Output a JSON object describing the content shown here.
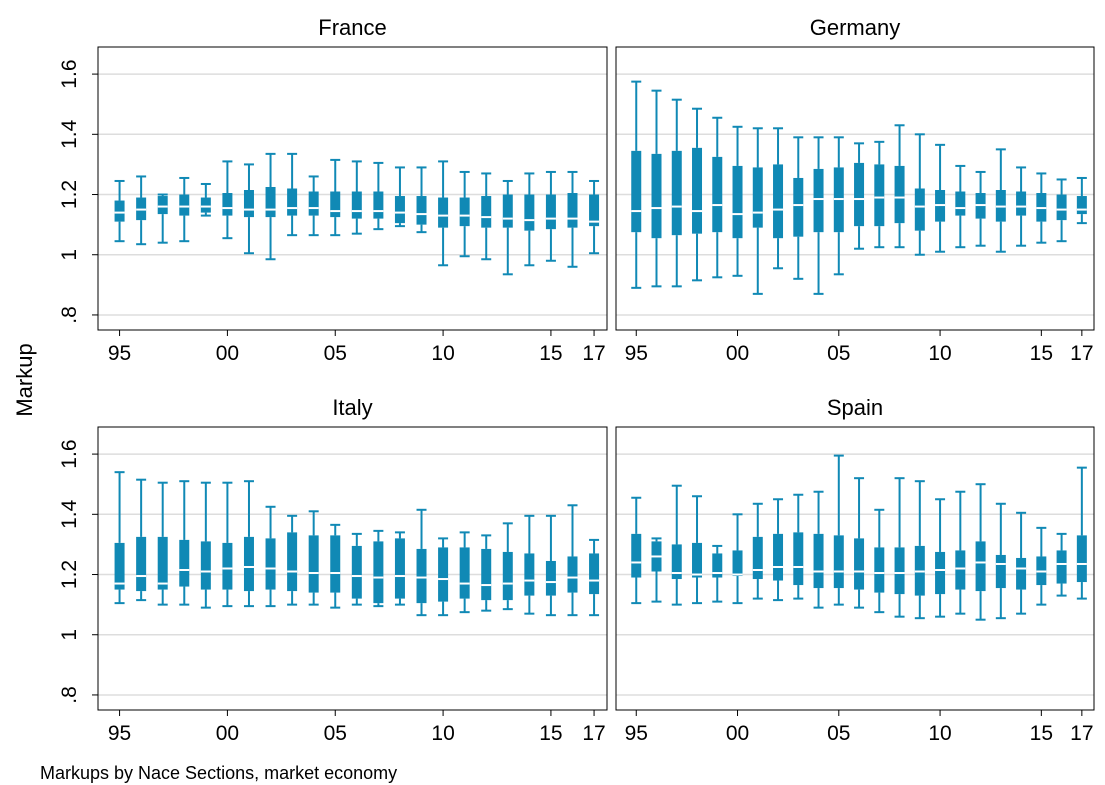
{
  "chart_data": {
    "type": "box",
    "ylabel": "Markup",
    "note": "Markups by Nace Sections, market economy",
    "ylim": [
      0.75,
      1.69
    ],
    "yticks": [
      {
        "value": 0.8,
        "label": ".8"
      },
      {
        "value": 1.0,
        "label": "1"
      },
      {
        "value": 1.2,
        "label": "1.2"
      },
      {
        "value": 1.4,
        "label": "1.4"
      },
      {
        "value": 1.6,
        "label": "1.6"
      }
    ],
    "xlim": [
      1994,
      2017.6
    ],
    "xticks": [
      {
        "value": 1995,
        "label": "95"
      },
      {
        "value": 2000,
        "label": "00"
      },
      {
        "value": 2005,
        "label": "05"
      },
      {
        "value": 2010,
        "label": "10"
      },
      {
        "value": 2015,
        "label": "15"
      },
      {
        "value": 2017,
        "label": "17"
      }
    ],
    "box_color": "#1089b5",
    "median_color": "#ffffff",
    "grid_color": "#dddddd",
    "panels": [
      {
        "name": "France",
        "boxes": [
          {
            "year": 1995,
            "lw": 1.045,
            "q1": 1.11,
            "med": 1.14,
            "q3": 1.18,
            "uw": 1.245
          },
          {
            "year": 1996,
            "lw": 1.035,
            "q1": 1.115,
            "med": 1.15,
            "q3": 1.19,
            "uw": 1.26
          },
          {
            "year": 1997,
            "lw": 1.04,
            "q1": 1.135,
            "med": 1.16,
            "q3": 1.195,
            "uw": 1.2
          },
          {
            "year": 1998,
            "lw": 1.045,
            "q1": 1.13,
            "med": 1.16,
            "q3": 1.2,
            "uw": 1.255
          },
          {
            "year": 1999,
            "lw": 1.13,
            "q1": 1.14,
            "med": 1.16,
            "q3": 1.19,
            "uw": 1.235
          },
          {
            "year": 2000,
            "lw": 1.055,
            "q1": 1.13,
            "med": 1.155,
            "q3": 1.205,
            "uw": 1.31
          },
          {
            "year": 2001,
            "lw": 1.005,
            "q1": 1.125,
            "med": 1.15,
            "q3": 1.215,
            "uw": 1.3
          },
          {
            "year": 2002,
            "lw": 0.985,
            "q1": 1.125,
            "med": 1.15,
            "q3": 1.225,
            "uw": 1.335
          },
          {
            "year": 2003,
            "lw": 1.065,
            "q1": 1.13,
            "med": 1.155,
            "q3": 1.22,
            "uw": 1.335
          },
          {
            "year": 2004,
            "lw": 1.065,
            "q1": 1.13,
            "med": 1.155,
            "q3": 1.21,
            "uw": 1.26
          },
          {
            "year": 2005,
            "lw": 1.065,
            "q1": 1.125,
            "med": 1.145,
            "q3": 1.21,
            "uw": 1.315
          },
          {
            "year": 2006,
            "lw": 1.07,
            "q1": 1.12,
            "med": 1.145,
            "q3": 1.21,
            "uw": 1.31
          },
          {
            "year": 2007,
            "lw": 1.085,
            "q1": 1.12,
            "med": 1.145,
            "q3": 1.21,
            "uw": 1.305
          },
          {
            "year": 2008,
            "lw": 1.095,
            "q1": 1.105,
            "med": 1.14,
            "q3": 1.195,
            "uw": 1.29
          },
          {
            "year": 2009,
            "lw": 1.075,
            "q1": 1.1,
            "med": 1.135,
            "q3": 1.195,
            "uw": 1.29
          },
          {
            "year": 2010,
            "lw": 0.965,
            "q1": 1.09,
            "med": 1.13,
            "q3": 1.19,
            "uw": 1.31
          },
          {
            "year": 2011,
            "lw": 0.995,
            "q1": 1.095,
            "med": 1.13,
            "q3": 1.19,
            "uw": 1.275
          },
          {
            "year": 2012,
            "lw": 0.985,
            "q1": 1.09,
            "med": 1.125,
            "q3": 1.195,
            "uw": 1.27
          },
          {
            "year": 2013,
            "lw": 0.935,
            "q1": 1.09,
            "med": 1.12,
            "q3": 1.2,
            "uw": 1.245
          },
          {
            "year": 2014,
            "lw": 0.965,
            "q1": 1.08,
            "med": 1.115,
            "q3": 1.2,
            "uw": 1.27
          },
          {
            "year": 2015,
            "lw": 0.98,
            "q1": 1.085,
            "med": 1.12,
            "q3": 1.2,
            "uw": 1.275
          },
          {
            "year": 2016,
            "lw": 0.96,
            "q1": 1.09,
            "med": 1.12,
            "q3": 1.205,
            "uw": 1.275
          },
          {
            "year": 2017,
            "lw": 1.005,
            "q1": 1.095,
            "med": 1.11,
            "q3": 1.2,
            "uw": 1.245
          }
        ]
      },
      {
        "name": "Germany",
        "boxes": [
          {
            "year": 1995,
            "lw": 0.89,
            "q1": 1.075,
            "med": 1.145,
            "q3": 1.345,
            "uw": 1.575
          },
          {
            "year": 1996,
            "lw": 0.895,
            "q1": 1.055,
            "med": 1.155,
            "q3": 1.335,
            "uw": 1.545
          },
          {
            "year": 1997,
            "lw": 0.895,
            "q1": 1.065,
            "med": 1.16,
            "q3": 1.345,
            "uw": 1.515
          },
          {
            "year": 1998,
            "lw": 0.915,
            "q1": 1.07,
            "med": 1.145,
            "q3": 1.355,
            "uw": 1.485
          },
          {
            "year": 1999,
            "lw": 0.925,
            "q1": 1.075,
            "med": 1.165,
            "q3": 1.325,
            "uw": 1.455
          },
          {
            "year": 2000,
            "lw": 0.93,
            "q1": 1.055,
            "med": 1.135,
            "q3": 1.295,
            "uw": 1.425
          },
          {
            "year": 2001,
            "lw": 0.87,
            "q1": 1.09,
            "med": 1.14,
            "q3": 1.29,
            "uw": 1.42
          },
          {
            "year": 2002,
            "lw": 0.955,
            "q1": 1.055,
            "med": 1.15,
            "q3": 1.3,
            "uw": 1.42
          },
          {
            "year": 2003,
            "lw": 0.92,
            "q1": 1.06,
            "med": 1.165,
            "q3": 1.255,
            "uw": 1.39
          },
          {
            "year": 2004,
            "lw": 0.87,
            "q1": 1.075,
            "med": 1.185,
            "q3": 1.285,
            "uw": 1.39
          },
          {
            "year": 2005,
            "lw": 0.935,
            "q1": 1.075,
            "med": 1.185,
            "q3": 1.29,
            "uw": 1.39
          },
          {
            "year": 2006,
            "lw": 1.02,
            "q1": 1.095,
            "med": 1.185,
            "q3": 1.305,
            "uw": 1.37
          },
          {
            "year": 2007,
            "lw": 1.025,
            "q1": 1.095,
            "med": 1.19,
            "q3": 1.3,
            "uw": 1.375
          },
          {
            "year": 2008,
            "lw": 1.025,
            "q1": 1.105,
            "med": 1.19,
            "q3": 1.295,
            "uw": 1.43
          },
          {
            "year": 2009,
            "lw": 1.0,
            "q1": 1.08,
            "med": 1.16,
            "q3": 1.22,
            "uw": 1.4
          },
          {
            "year": 2010,
            "lw": 1.01,
            "q1": 1.11,
            "med": 1.165,
            "q3": 1.215,
            "uw": 1.365
          },
          {
            "year": 2011,
            "lw": 1.025,
            "q1": 1.13,
            "med": 1.155,
            "q3": 1.21,
            "uw": 1.295
          },
          {
            "year": 2012,
            "lw": 1.03,
            "q1": 1.12,
            "med": 1.165,
            "q3": 1.205,
            "uw": 1.275
          },
          {
            "year": 2013,
            "lw": 1.01,
            "q1": 1.11,
            "med": 1.16,
            "q3": 1.215,
            "uw": 1.35
          },
          {
            "year": 2014,
            "lw": 1.03,
            "q1": 1.13,
            "med": 1.16,
            "q3": 1.21,
            "uw": 1.29
          },
          {
            "year": 2015,
            "lw": 1.04,
            "q1": 1.11,
            "med": 1.155,
            "q3": 1.205,
            "uw": 1.27
          },
          {
            "year": 2016,
            "lw": 1.045,
            "q1": 1.115,
            "med": 1.15,
            "q3": 1.2,
            "uw": 1.25
          },
          {
            "year": 2017,
            "lw": 1.105,
            "q1": 1.135,
            "med": 1.15,
            "q3": 1.195,
            "uw": 1.255
          }
        ]
      },
      {
        "name": "Italy",
        "boxes": [
          {
            "year": 1995,
            "lw": 1.105,
            "q1": 1.15,
            "med": 1.17,
            "q3": 1.305,
            "uw": 1.54
          },
          {
            "year": 1996,
            "lw": 1.115,
            "q1": 1.145,
            "med": 1.195,
            "q3": 1.325,
            "uw": 1.515
          },
          {
            "year": 1997,
            "lw": 1.1,
            "q1": 1.15,
            "med": 1.17,
            "q3": 1.325,
            "uw": 1.505
          },
          {
            "year": 1998,
            "lw": 1.1,
            "q1": 1.16,
            "med": 1.215,
            "q3": 1.315,
            "uw": 1.51
          },
          {
            "year": 1999,
            "lw": 1.09,
            "q1": 1.15,
            "med": 1.21,
            "q3": 1.31,
            "uw": 1.505
          },
          {
            "year": 2000,
            "lw": 1.095,
            "q1": 1.15,
            "med": 1.22,
            "q3": 1.305,
            "uw": 1.505
          },
          {
            "year": 2001,
            "lw": 1.095,
            "q1": 1.145,
            "med": 1.225,
            "q3": 1.325,
            "uw": 1.51
          },
          {
            "year": 2002,
            "lw": 1.095,
            "q1": 1.15,
            "med": 1.22,
            "q3": 1.32,
            "uw": 1.425
          },
          {
            "year": 2003,
            "lw": 1.1,
            "q1": 1.145,
            "med": 1.21,
            "q3": 1.34,
            "uw": 1.395
          },
          {
            "year": 2004,
            "lw": 1.1,
            "q1": 1.14,
            "med": 1.205,
            "q3": 1.33,
            "uw": 1.41
          },
          {
            "year": 2005,
            "lw": 1.09,
            "q1": 1.14,
            "med": 1.205,
            "q3": 1.33,
            "uw": 1.365
          },
          {
            "year": 2006,
            "lw": 1.1,
            "q1": 1.12,
            "med": 1.195,
            "q3": 1.295,
            "uw": 1.335
          },
          {
            "year": 2007,
            "lw": 1.095,
            "q1": 1.105,
            "med": 1.19,
            "q3": 1.31,
            "uw": 1.345
          },
          {
            "year": 2008,
            "lw": 1.1,
            "q1": 1.12,
            "med": 1.195,
            "q3": 1.32,
            "uw": 1.34
          },
          {
            "year": 2009,
            "lw": 1.065,
            "q1": 1.105,
            "med": 1.19,
            "q3": 1.285,
            "uw": 1.415
          },
          {
            "year": 2010,
            "lw": 1.065,
            "q1": 1.11,
            "med": 1.185,
            "q3": 1.29,
            "uw": 1.32
          },
          {
            "year": 2011,
            "lw": 1.075,
            "q1": 1.12,
            "med": 1.17,
            "q3": 1.29,
            "uw": 1.34
          },
          {
            "year": 2012,
            "lw": 1.08,
            "q1": 1.115,
            "med": 1.165,
            "q3": 1.285,
            "uw": 1.33
          },
          {
            "year": 2013,
            "lw": 1.085,
            "q1": 1.115,
            "med": 1.17,
            "q3": 1.275,
            "uw": 1.37
          },
          {
            "year": 2014,
            "lw": 1.07,
            "q1": 1.13,
            "med": 1.18,
            "q3": 1.27,
            "uw": 1.395
          },
          {
            "year": 2015,
            "lw": 1.065,
            "q1": 1.13,
            "med": 1.175,
            "q3": 1.245,
            "uw": 1.395
          },
          {
            "year": 2016,
            "lw": 1.065,
            "q1": 1.14,
            "med": 1.19,
            "q3": 1.26,
            "uw": 1.43
          },
          {
            "year": 2017,
            "lw": 1.065,
            "q1": 1.135,
            "med": 1.18,
            "q3": 1.27,
            "uw": 1.315
          }
        ]
      },
      {
        "name": "Spain",
        "boxes": [
          {
            "year": 1995,
            "lw": 1.105,
            "q1": 1.19,
            "med": 1.24,
            "q3": 1.335,
            "uw": 1.455
          },
          {
            "year": 1996,
            "lw": 1.11,
            "q1": 1.21,
            "med": 1.26,
            "q3": 1.31,
            "uw": 1.32
          },
          {
            "year": 1997,
            "lw": 1.1,
            "q1": 1.185,
            "med": 1.205,
            "q3": 1.3,
            "uw": 1.495
          },
          {
            "year": 1998,
            "lw": 1.105,
            "q1": 1.19,
            "med": 1.2,
            "q3": 1.305,
            "uw": 1.46
          },
          {
            "year": 1999,
            "lw": 1.11,
            "q1": 1.19,
            "med": 1.205,
            "q3": 1.27,
            "uw": 1.295
          },
          {
            "year": 2000,
            "lw": 1.105,
            "q1": 1.195,
            "med": 1.2,
            "q3": 1.28,
            "uw": 1.4
          },
          {
            "year": 2001,
            "lw": 1.12,
            "q1": 1.185,
            "med": 1.215,
            "q3": 1.325,
            "uw": 1.435
          },
          {
            "year": 2002,
            "lw": 1.115,
            "q1": 1.18,
            "med": 1.225,
            "q3": 1.335,
            "uw": 1.45
          },
          {
            "year": 2003,
            "lw": 1.12,
            "q1": 1.165,
            "med": 1.225,
            "q3": 1.34,
            "uw": 1.465
          },
          {
            "year": 2004,
            "lw": 1.09,
            "q1": 1.155,
            "med": 1.21,
            "q3": 1.335,
            "uw": 1.475
          },
          {
            "year": 2005,
            "lw": 1.1,
            "q1": 1.155,
            "med": 1.21,
            "q3": 1.33,
            "uw": 1.595
          },
          {
            "year": 2006,
            "lw": 1.09,
            "q1": 1.15,
            "med": 1.21,
            "q3": 1.32,
            "uw": 1.52
          },
          {
            "year": 2007,
            "lw": 1.075,
            "q1": 1.14,
            "med": 1.205,
            "q3": 1.29,
            "uw": 1.415
          },
          {
            "year": 2008,
            "lw": 1.06,
            "q1": 1.135,
            "med": 1.205,
            "q3": 1.29,
            "uw": 1.52
          },
          {
            "year": 2009,
            "lw": 1.055,
            "q1": 1.13,
            "med": 1.21,
            "q3": 1.295,
            "uw": 1.51
          },
          {
            "year": 2010,
            "lw": 1.06,
            "q1": 1.135,
            "med": 1.215,
            "q3": 1.275,
            "uw": 1.45
          },
          {
            "year": 2011,
            "lw": 1.07,
            "q1": 1.15,
            "med": 1.22,
            "q3": 1.28,
            "uw": 1.475
          },
          {
            "year": 2012,
            "lw": 1.05,
            "q1": 1.145,
            "med": 1.24,
            "q3": 1.31,
            "uw": 1.5
          },
          {
            "year": 2013,
            "lw": 1.055,
            "q1": 1.155,
            "med": 1.235,
            "q3": 1.265,
            "uw": 1.435
          },
          {
            "year": 2014,
            "lw": 1.07,
            "q1": 1.15,
            "med": 1.22,
            "q3": 1.255,
            "uw": 1.405
          },
          {
            "year": 2015,
            "lw": 1.1,
            "q1": 1.165,
            "med": 1.21,
            "q3": 1.26,
            "uw": 1.355
          },
          {
            "year": 2016,
            "lw": 1.13,
            "q1": 1.17,
            "med": 1.235,
            "q3": 1.28,
            "uw": 1.335
          },
          {
            "year": 2017,
            "lw": 1.12,
            "q1": 1.175,
            "med": 1.235,
            "q3": 1.33,
            "uw": 1.555
          }
        ]
      }
    ]
  }
}
